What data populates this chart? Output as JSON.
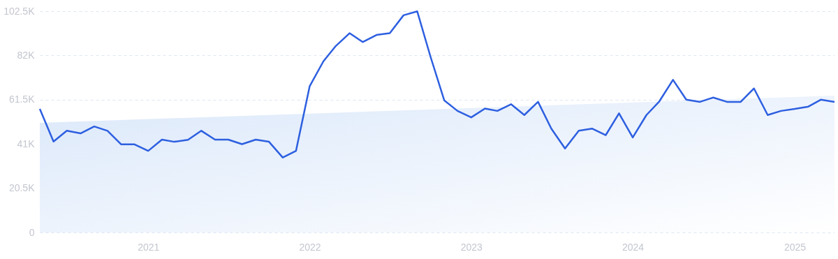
{
  "chart_data": {
    "type": "line",
    "x": [
      "2020-05",
      "2020-06",
      "2020-07",
      "2020-08",
      "2020-09",
      "2020-10",
      "2020-11",
      "2020-12",
      "2021-01",
      "2021-02",
      "2021-03",
      "2021-04",
      "2021-05",
      "2021-06",
      "2021-07",
      "2021-08",
      "2021-09",
      "2021-10",
      "2021-11",
      "2021-12",
      "2022-01",
      "2022-02",
      "2022-03",
      "2022-04",
      "2022-05",
      "2022-06",
      "2022-07",
      "2022-08",
      "2022-09",
      "2022-10",
      "2022-11",
      "2022-12",
      "2023-01",
      "2023-02",
      "2023-03",
      "2023-04",
      "2023-05",
      "2023-06",
      "2023-07",
      "2023-08",
      "2023-09",
      "2023-10",
      "2023-11",
      "2023-12",
      "2024-01",
      "2024-02",
      "2024-03",
      "2024-04",
      "2024-05",
      "2024-06",
      "2024-07",
      "2024-08",
      "2024-09",
      "2024-10",
      "2024-11",
      "2024-12",
      "2025-01",
      "2025-02",
      "2025-03",
      "2025-04"
    ],
    "series": [
      {
        "type": "area",
        "color": "#dbe8fa",
        "x": [
          "2020-05",
          "2025-04"
        ],
        "values": [
          50800,
          63400
        ]
      },
      {
        "color": "#2d5fe0",
        "values": [
          57200,
          42100,
          47100,
          45900,
          49100,
          47100,
          40800,
          40800,
          37800,
          43000,
          42000,
          42900,
          47100,
          43000,
          43000,
          40900,
          43000,
          42000,
          34700,
          37800,
          67800,
          79300,
          86400,
          92300,
          88200,
          91500,
          92300,
          100600,
          102400,
          81400,
          61200,
          56300,
          53300,
          57400,
          56300,
          59400,
          54400,
          60500,
          48100,
          38900,
          47100,
          48100,
          45100,
          55200,
          44000,
          54400,
          60700,
          70700,
          61500,
          60500,
          62500,
          60500,
          60500,
          66700,
          54400,
          56300,
          57200,
          58300,
          61500,
          60500
        ]
      }
    ],
    "xlim": [
      "2020-05",
      "2025-04"
    ],
    "xticks": [
      "2021",
      "2022",
      "2023",
      "2024",
      "2025"
    ],
    "ylim": [
      0,
      102500
    ],
    "yticks": [
      0,
      {
        "value": 20500,
        "label": "20.5K"
      },
      {
        "value": 41000,
        "label": "41K"
      },
      {
        "value": 61500,
        "label": "61.5K"
      },
      {
        "value": 82000,
        "label": "82K"
      },
      {
        "value": 102500,
        "label": "102.5K"
      }
    ],
    "grid": "y",
    "line_style": "solid"
  }
}
